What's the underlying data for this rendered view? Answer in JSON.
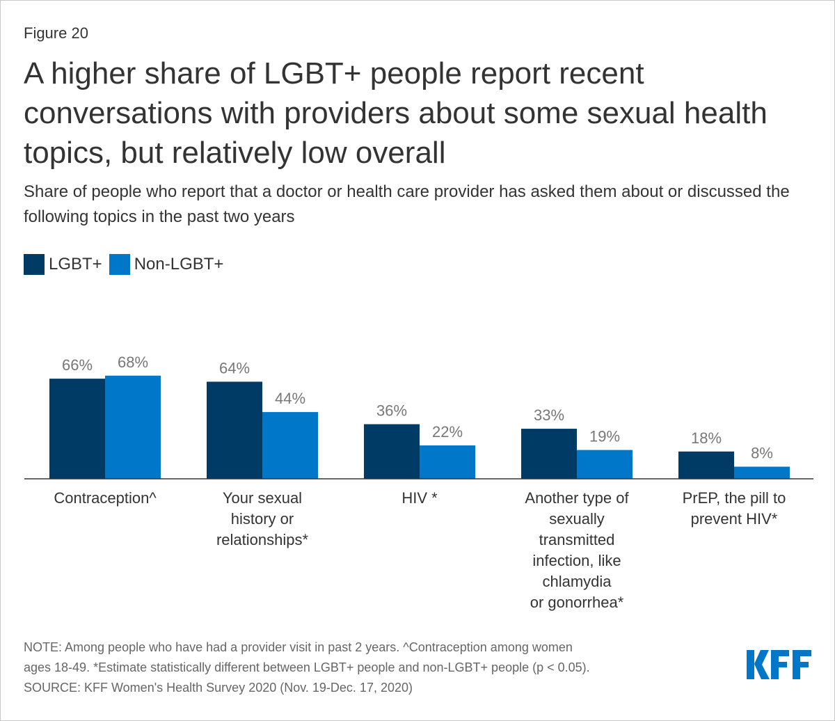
{
  "figure_label": "Figure 20",
  "title": "A higher share of LGBT+ people report recent conversations with providers about some sexual health topics, but relatively low overall",
  "subtitle": "Share of people who report that a doctor or health care provider has asked them about or discussed the following topics in the past two years",
  "notes": [
    "NOTE: Among people who have had a provider visit in past 2 years. ^Contraception among women",
    "ages 18-49. *Estimate statistically different between LGBT+ people and non-LGBT+ people (p < 0.05).",
    "SOURCE: KFF Women's Health Survey 2020 (Nov. 19-Dec. 17, 2020)"
  ],
  "logo": "KFF",
  "colors": {
    "lgbt": "#003b65",
    "non_lgbt": "#0077c8",
    "logo": "#0077c8"
  },
  "chart_data": {
    "type": "bar",
    "categories": [
      [
        "Contraception^"
      ],
      [
        "Your sexual",
        "history or",
        "relationships*"
      ],
      [
        "HIV *"
      ],
      [
        "Another type of",
        "sexually",
        "transmitted",
        "infection, like",
        "chlamydia",
        "or gonorrhea*"
      ],
      [
        "PrEP, the pill to",
        "prevent HIV*"
      ]
    ],
    "series": [
      {
        "name": "LGBT+",
        "values": [
          66,
          64,
          36,
          33,
          18
        ],
        "labels": [
          "66%",
          "64%",
          "36%",
          "33%",
          "18%"
        ]
      },
      {
        "name": "Non-LGBT+",
        "values": [
          68,
          44,
          22,
          19,
          8
        ],
        "labels": [
          "68%",
          "44%",
          "22%",
          "19%",
          "8%"
        ]
      }
    ],
    "ylim": [
      0,
      100
    ],
    "legend": "top-left",
    "grid": false
  }
}
